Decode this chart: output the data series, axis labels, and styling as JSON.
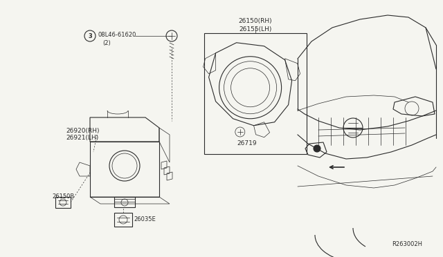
{
  "bg_color": "#f5f5f0",
  "line_color": "#2a2a2a",
  "fig_width": 6.4,
  "fig_height": 3.72,
  "dpi": 100,
  "labels": {
    "part_screw": "08L46-61620",
    "part_screw_qty": "(2)",
    "mid_left_part": "26920(RH)\n26921(LH)",
    "bottom_left_connector": "26150B",
    "bottom_center_connector": "26035E",
    "inset_top_line1": "26150(RH)",
    "inset_top_line2": "26155(LH)",
    "inset_bulb": "26719",
    "ref_code": "R263002H"
  }
}
